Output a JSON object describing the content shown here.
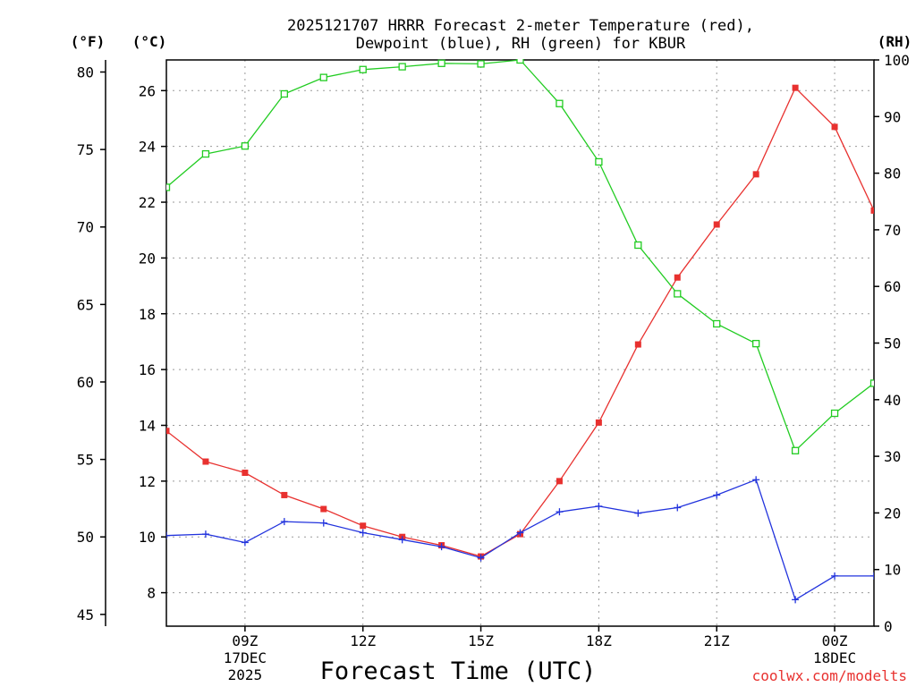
{
  "chart_data": {
    "type": "line",
    "title_line1": "2025121707 HRRR Forecast 2-meter Temperature (red),",
    "title_line2": "Dewpoint (blue), RH (green) for KBUR",
    "xlabel": "Forecast Time (UTC)",
    "credit": "coolwx.com/modelts",
    "left_axis_unit": "(°F)",
    "celsius_axis_unit": "(°C)",
    "right_axis_unit": "(RH)",
    "x_range": [
      7,
      25
    ],
    "x_ticks": [
      {
        "hour": 9,
        "label": "09Z"
      },
      {
        "hour": 12,
        "label": "12Z"
      },
      {
        "hour": 15,
        "label": "15Z"
      },
      {
        "hour": 18,
        "label": "18Z"
      },
      {
        "hour": 21,
        "label": "21Z"
      },
      {
        "hour": 24,
        "label": "00Z"
      }
    ],
    "date_labels": [
      {
        "hour": 9,
        "line1": "17DEC",
        "line2": "2025"
      },
      {
        "hour": 24,
        "line1": "18DEC",
        "line2": ""
      }
    ],
    "celsius_range": [
      6.8,
      27.1
    ],
    "celsius_ticks": [
      8,
      10,
      12,
      14,
      16,
      18,
      20,
      22,
      24,
      26
    ],
    "fahrenheit_ticks": [
      45,
      50,
      55,
      60,
      65,
      70,
      75,
      80
    ],
    "rh_range": [
      0,
      100
    ],
    "rh_ticks": [
      0,
      10,
      20,
      30,
      40,
      50,
      60,
      70,
      80,
      90,
      100
    ],
    "hours": [
      7,
      8,
      9,
      10,
      11,
      12,
      13,
      14,
      15,
      16,
      17,
      18,
      19,
      20,
      21,
      22,
      23,
      24,
      25
    ],
    "series": [
      {
        "name": "Temperature",
        "unit": "C",
        "color": "#e8312f",
        "marker": "filled-square",
        "values": [
          13.8,
          12.7,
          12.3,
          11.5,
          11.0,
          10.4,
          10.0,
          9.7,
          9.3,
          10.1,
          12.0,
          14.1,
          16.9,
          19.3,
          21.2,
          23.0,
          26.1,
          24.7,
          21.7
        ]
      },
      {
        "name": "Dewpoint",
        "unit": "C",
        "color": "#2233dd",
        "marker": "plus",
        "values": [
          10.05,
          10.1,
          9.8,
          10.55,
          10.5,
          10.15,
          9.9,
          9.65,
          9.25,
          10.15,
          10.9,
          11.1,
          10.85,
          11.05,
          11.5,
          12.05,
          7.75,
          8.6,
          8.6
        ]
      },
      {
        "name": "RH",
        "unit": "%",
        "color": "#22cc22",
        "marker": "open-square",
        "values": [
          77.5,
          83.4,
          84.8,
          94.0,
          96.9,
          98.3,
          98.8,
          99.4,
          99.3,
          100.0,
          92.3,
          82.0,
          67.3,
          58.7,
          53.4,
          49.9,
          31.0,
          37.6,
          42.9
        ]
      }
    ]
  }
}
